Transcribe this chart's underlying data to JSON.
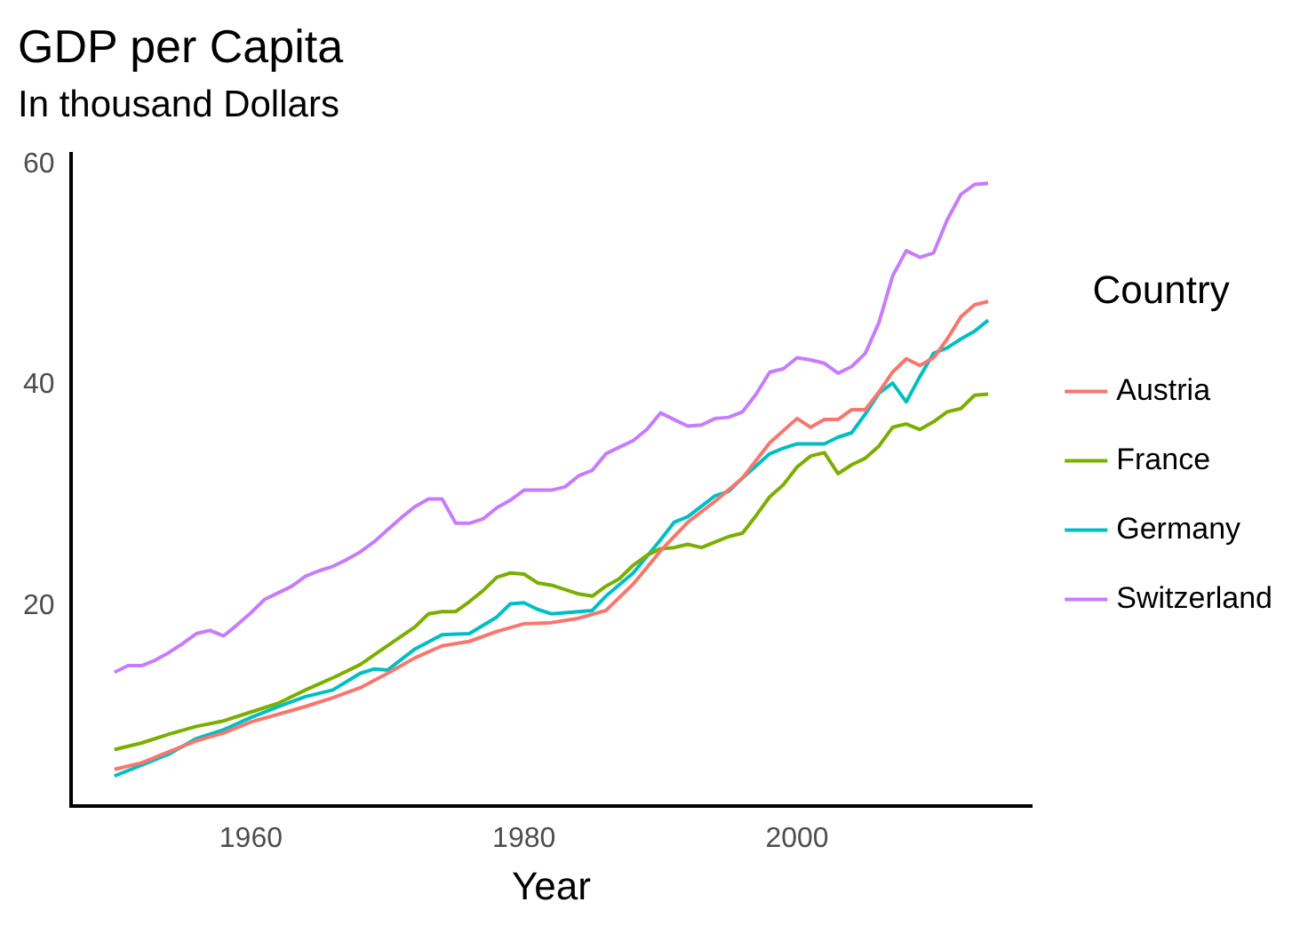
{
  "chart_data": {
    "type": "line",
    "title": "GDP per Capita",
    "subtitle": "In thousand Dollars",
    "xlabel": "Year",
    "legend_title": "Country",
    "legend": "right",
    "grid": false,
    "marker": "none",
    "line_style": "solid",
    "xlim": [
      1946.8,
      2017.2
    ],
    "xticks": [
      1960,
      1980,
      2000
    ],
    "ylim": [
      1.9,
      61
    ],
    "yticks": [
      20,
      40,
      60
    ],
    "series": [
      {
        "name": "Austria",
        "color": "#f8766d",
        "x": [
          1950,
          1952,
          1954,
          1956,
          1958,
          1960,
          1962,
          1964,
          1966,
          1968,
          1970,
          1972,
          1974,
          1976,
          1978,
          1980,
          1982,
          1984,
          1986,
          1988,
          1990,
          1992,
          1994,
          1996,
          1998,
          2000,
          2001,
          2002,
          2003,
          2004,
          2005,
          2006,
          2007,
          2008,
          2009,
          2010,
          2011,
          2012,
          2013,
          2014
        ],
        "values": [
          5.2,
          5.8,
          6.8,
          7.8,
          8.5,
          9.5,
          10.2,
          10.9,
          11.7,
          12.6,
          13.9,
          15.3,
          16.4,
          16.8,
          17.7,
          18.4,
          18.5,
          18.9,
          19.6,
          22.0,
          25.0,
          27.6,
          29.5,
          31.6,
          34.8,
          37.0,
          36.2,
          36.9,
          36.9,
          37.8,
          37.8,
          39.4,
          41.2,
          42.4,
          41.8,
          42.5,
          44.2,
          46.2,
          47.3,
          47.6
        ]
      },
      {
        "name": "France",
        "color": "#7cae00",
        "x": [
          1950,
          1952,
          1954,
          1956,
          1958,
          1960,
          1962,
          1964,
          1966,
          1968,
          1970,
          1972,
          1973,
          1974,
          1975,
          1976,
          1977,
          1978,
          1979,
          1980,
          1981,
          1982,
          1983,
          1984,
          1985,
          1986,
          1987,
          1988,
          1989,
          1990,
          1991,
          1992,
          1993,
          1994,
          1995,
          1996,
          1997,
          1998,
          1999,
          2000,
          2001,
          2002,
          2003,
          2004,
          2005,
          2006,
          2007,
          2008,
          2009,
          2010,
          2011,
          2012,
          2013,
          2014
        ],
        "values": [
          7.0,
          7.6,
          8.4,
          9.1,
          9.6,
          10.4,
          11.2,
          12.4,
          13.5,
          14.7,
          16.4,
          18.1,
          19.3,
          19.5,
          19.5,
          20.4,
          21.4,
          22.6,
          23.0,
          22.9,
          22.1,
          21.9,
          21.5,
          21.1,
          20.9,
          21.8,
          22.5,
          23.7,
          24.6,
          25.2,
          25.3,
          25.6,
          25.3,
          25.8,
          26.3,
          26.6,
          28.2,
          29.9,
          31.0,
          32.6,
          33.6,
          33.9,
          32.0,
          32.8,
          33.4,
          34.5,
          36.2,
          36.5,
          36.0,
          36.7,
          37.6,
          37.9,
          39.1,
          39.2
        ]
      },
      {
        "name": "Germany",
        "color": "#00bfc4",
        "x": [
          1950,
          1952,
          1954,
          1956,
          1958,
          1960,
          1962,
          1964,
          1966,
          1968,
          1969,
          1970,
          1972,
          1974,
          1976,
          1978,
          1979,
          1980,
          1981,
          1982,
          1984,
          1985,
          1986,
          1988,
          1990,
          1991,
          1992,
          1994,
          1995,
          1996,
          1998,
          1999,
          2000,
          2001,
          2002,
          2003,
          2004,
          2005,
          2006,
          2007,
          2008,
          2009,
          2010,
          2011,
          2012,
          2013,
          2014
        ],
        "values": [
          4.6,
          5.6,
          6.6,
          8.0,
          8.8,
          9.9,
          10.9,
          11.8,
          12.4,
          13.9,
          14.3,
          14.2,
          16.1,
          17.4,
          17.5,
          19.0,
          20.2,
          20.3,
          19.7,
          19.3,
          19.5,
          19.6,
          20.9,
          23.0,
          26.0,
          27.6,
          28.1,
          30.0,
          30.4,
          31.6,
          33.8,
          34.3,
          34.7,
          34.7,
          34.7,
          35.3,
          35.7,
          37.4,
          39.3,
          40.2,
          38.5,
          40.8,
          42.9,
          43.4,
          44.2,
          44.9,
          45.9
        ]
      },
      {
        "name": "Switzerland",
        "color": "#c77cff",
        "x": [
          1950,
          1951,
          1952,
          1953,
          1954,
          1955,
          1956,
          1957,
          1958,
          1959,
          1960,
          1961,
          1962,
          1963,
          1964,
          1965,
          1966,
          1967,
          1968,
          1969,
          1970,
          1971,
          1972,
          1973,
          1974,
          1975,
          1976,
          1977,
          1978,
          1979,
          1980,
          1981,
          1982,
          1983,
          1984,
          1985,
          1986,
          1987,
          1988,
          1989,
          1990,
          1991,
          1992,
          1993,
          1994,
          1995,
          1996,
          1997,
          1998,
          1999,
          2000,
          2001,
          2002,
          2003,
          2004,
          2005,
          2006,
          2007,
          2008,
          2009,
          2010,
          2011,
          2012,
          2013,
          2014
        ],
        "values": [
          14.0,
          14.6,
          14.6,
          15.1,
          15.8,
          16.6,
          17.5,
          17.8,
          17.3,
          18.3,
          19.4,
          20.6,
          21.2,
          21.8,
          22.7,
          23.2,
          23.6,
          24.2,
          24.9,
          25.8,
          26.9,
          28.0,
          29.0,
          29.7,
          29.7,
          27.5,
          27.5,
          27.9,
          28.9,
          29.6,
          30.5,
          30.5,
          30.5,
          30.8,
          31.8,
          32.3,
          33.8,
          34.4,
          35.0,
          36.0,
          37.5,
          36.9,
          36.3,
          36.4,
          37.0,
          37.1,
          37.6,
          39.2,
          41.2,
          41.5,
          42.5,
          42.3,
          42.0,
          41.1,
          41.7,
          42.9,
          45.7,
          49.9,
          52.2,
          51.6,
          52.0,
          55.0,
          57.3,
          58.2,
          58.3
        ]
      }
    ]
  }
}
